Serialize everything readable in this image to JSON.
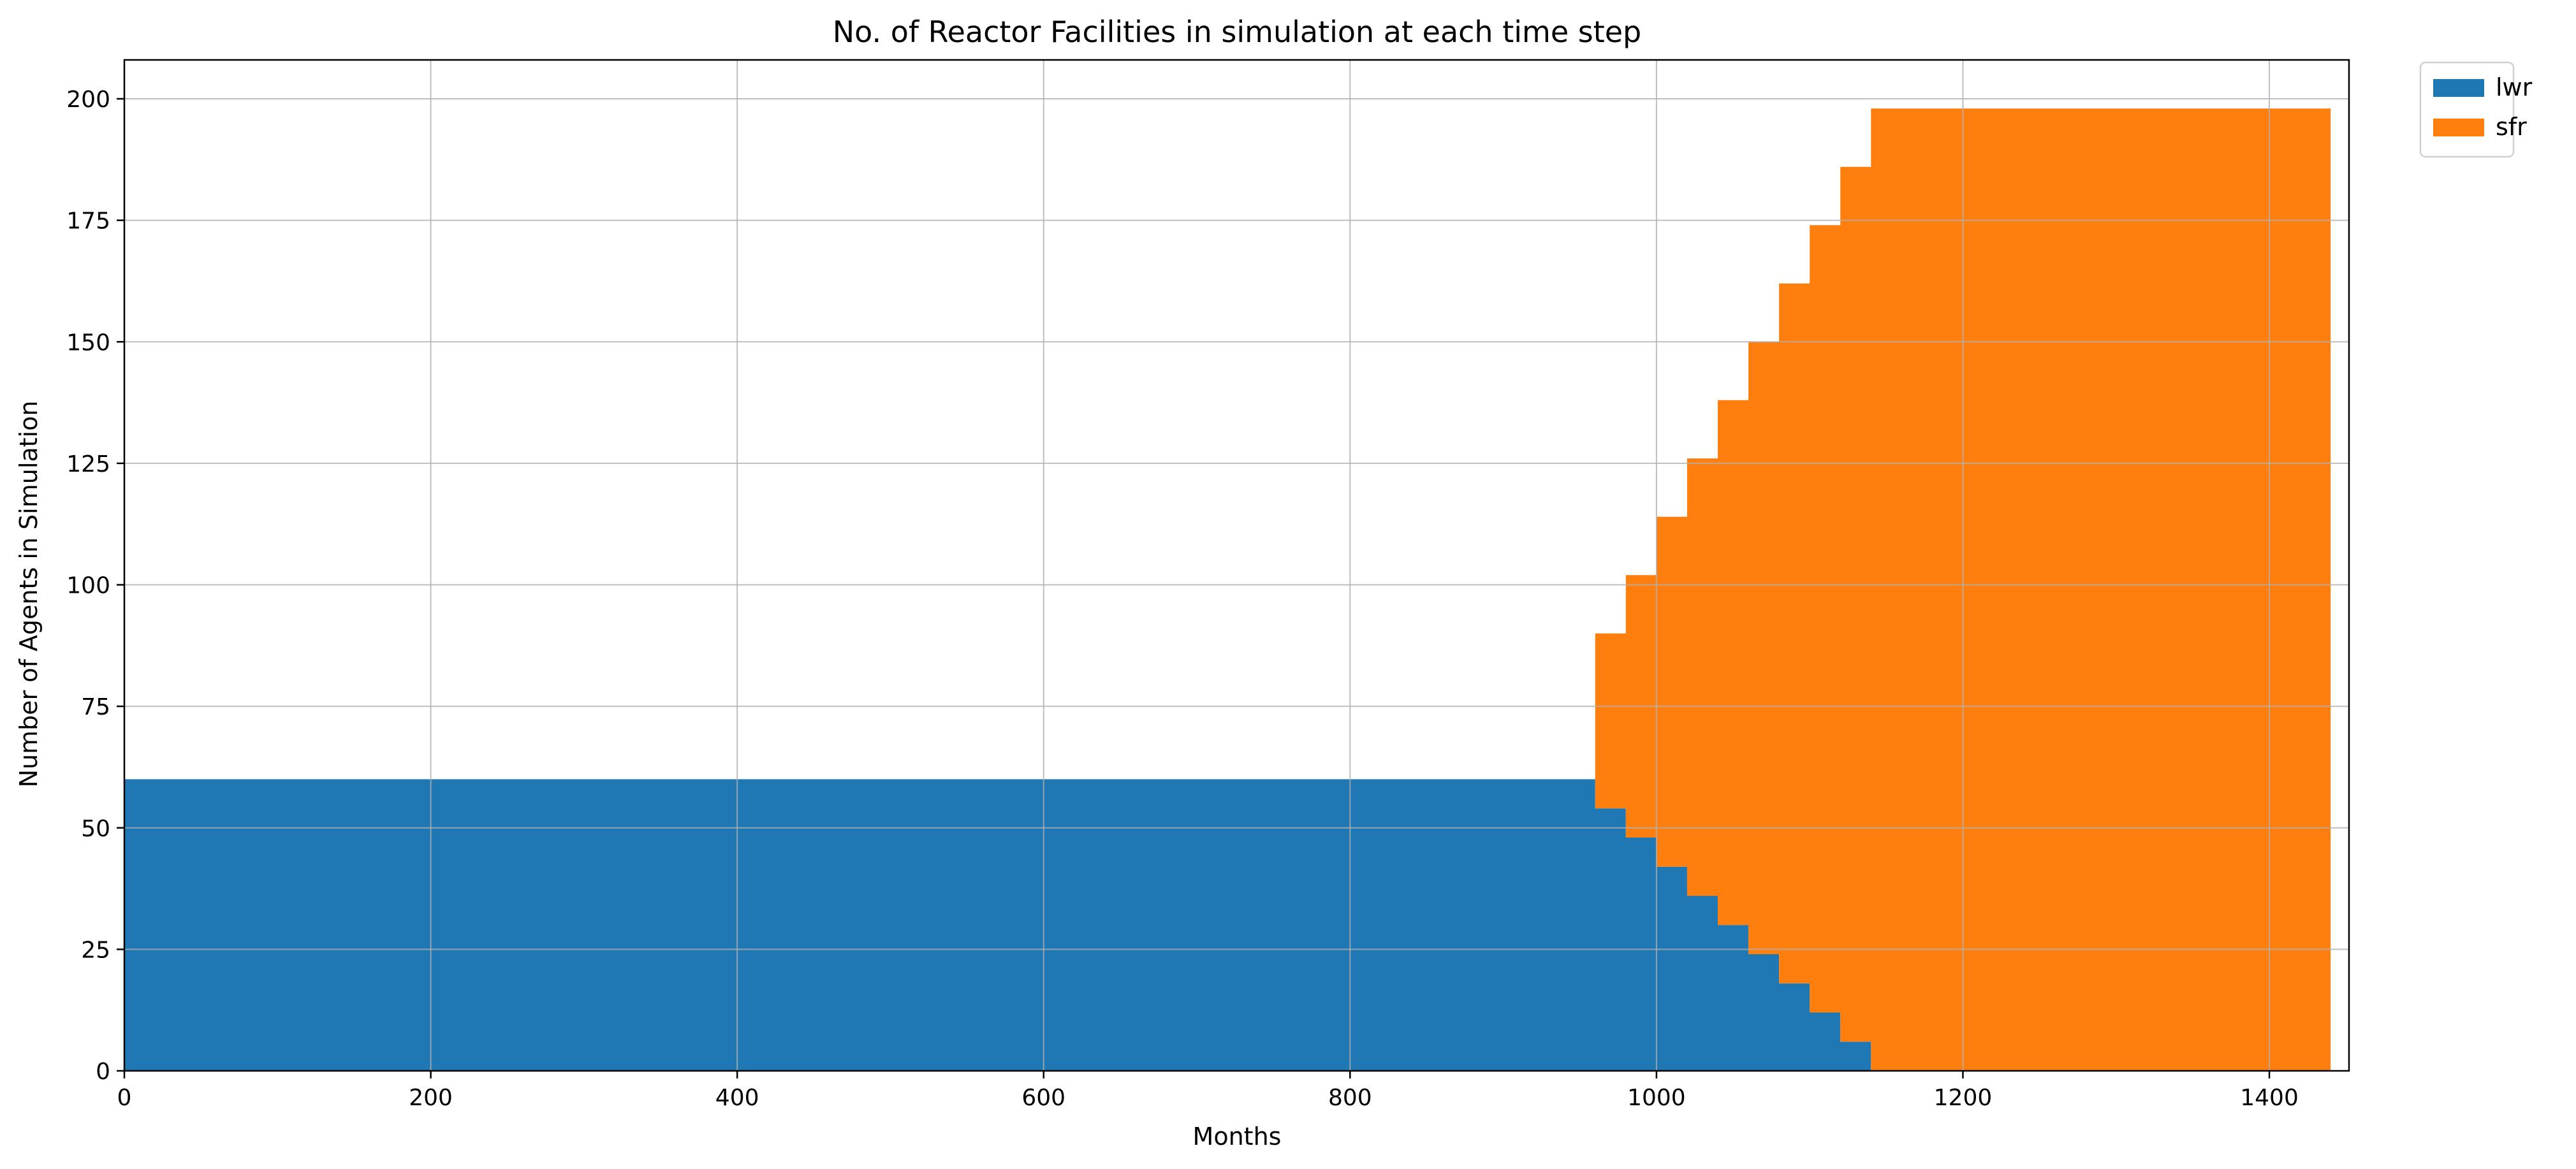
{
  "chart_data": {
    "type": "area",
    "stacked": true,
    "step": true,
    "title": "No. of Reactor Facilities in simulation at each time step",
    "xlabel": "Months",
    "ylabel": "Number of Agents in Simulation",
    "xlim": [
      0,
      1452
    ],
    "ylim": [
      0,
      208
    ],
    "xticks": [
      0,
      200,
      400,
      600,
      800,
      1000,
      1200,
      1400
    ],
    "yticks": [
      0,
      25,
      50,
      75,
      100,
      125,
      150,
      175,
      200
    ],
    "grid": true,
    "legend_position": "outside-top-right",
    "x": [
      0,
      960,
      980,
      1000,
      1020,
      1040,
      1060,
      1080,
      1100,
      1120,
      1140,
      1440
    ],
    "series": [
      {
        "name": "lwr",
        "color": "#1f77b4",
        "values": [
          60,
          54,
          48,
          42,
          36,
          30,
          24,
          18,
          12,
          6,
          0,
          0
        ]
      },
      {
        "name": "sfr",
        "color": "#ff7f0e",
        "values": [
          0,
          36,
          54,
          72,
          90,
          108,
          126,
          144,
          162,
          180,
          198,
          198
        ]
      }
    ]
  }
}
